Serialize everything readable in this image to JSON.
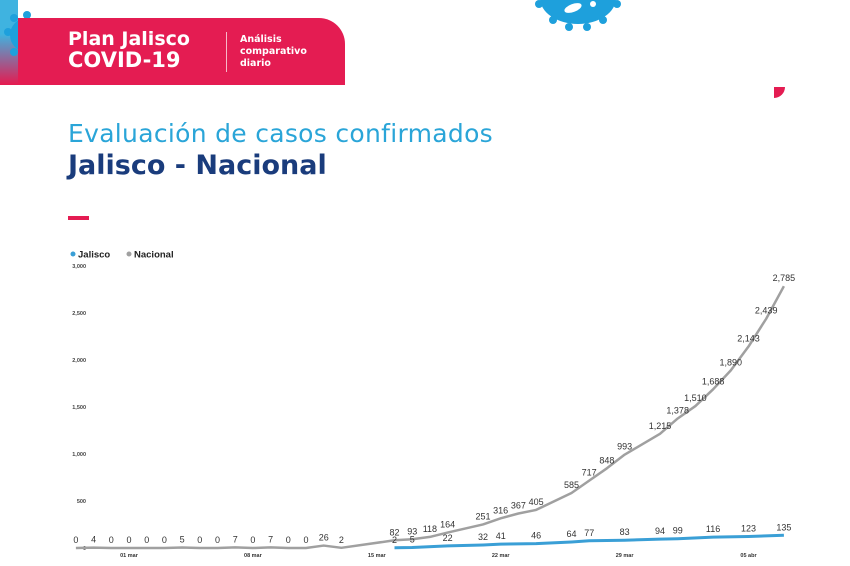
{
  "header": {
    "brand_line1": "Plan Jalisco",
    "brand_line2": "COVID-19",
    "sub_line1": "Análisis",
    "sub_line2": "comparativo",
    "sub_line3": "diario",
    "icon": "virus-icon"
  },
  "title": {
    "line1": "Evaluación de casos confirmados",
    "line2": "Jalisco - Nacional"
  },
  "colors": {
    "brand_pink": "#e41c52",
    "brand_blue": "#2aa5d8",
    "navy": "#1a3c7c",
    "jalisco": "#3a9fd6",
    "nacional": "#a0a0a0"
  },
  "chart_data": {
    "type": "line",
    "legend": [
      "Jalisco",
      "Nacional"
    ],
    "legend_placement": "top-left",
    "grid": false,
    "ylim": [
      0,
      3000
    ],
    "yticks": [
      {
        "v": 0,
        "label": "0"
      },
      {
        "v": 500,
        "label": "500"
      },
      {
        "v": 1000,
        "label": "1,000"
      },
      {
        "v": 1500,
        "label": "1,500"
      },
      {
        "v": 2000,
        "label": "2,000"
      },
      {
        "v": 2500,
        "label": "2,500"
      },
      {
        "v": 3000,
        "label": "3,000"
      }
    ],
    "xticks": [
      "01 mar",
      "08 mar",
      "15 mar",
      "22 mar",
      "29 mar",
      "05 abr"
    ],
    "series": [
      {
        "name": "Jalisco",
        "color": "#3a9fd6",
        "points": [
          [
            "16 mar",
            2
          ],
          [
            "17 mar",
            5
          ],
          [
            "19 mar",
            22
          ],
          [
            "21 mar",
            32
          ],
          [
            "22 mar",
            41
          ],
          [
            "24 mar",
            46
          ],
          [
            "26 mar",
            64
          ],
          [
            "27 mar",
            77
          ],
          [
            "29 mar",
            83
          ],
          [
            "31 mar",
            94
          ],
          [
            "01 abr",
            99
          ],
          [
            "03 abr",
            116
          ],
          [
            "05 abr",
            123
          ],
          [
            "07 abr",
            135
          ]
        ]
      },
      {
        "name": "Nacional",
        "color": "#a0a0a0",
        "points": [
          [
            "27 feb",
            0
          ],
          [
            "28 feb",
            4
          ],
          [
            "29 feb",
            0
          ],
          [
            "01 mar",
            0
          ],
          [
            "02 mar",
            0
          ],
          [
            "03 mar",
            0
          ],
          [
            "04 mar",
            5
          ],
          [
            "05 mar",
            0
          ],
          [
            "06 mar",
            0
          ],
          [
            "07 mar",
            7
          ],
          [
            "08 mar",
            0
          ],
          [
            "09 mar",
            7
          ],
          [
            "10 mar",
            0
          ],
          [
            "11 mar",
            0
          ],
          [
            "12 mar",
            26
          ],
          [
            "13 mar",
            2
          ],
          [
            "16 mar",
            82
          ],
          [
            "17 mar",
            93
          ],
          [
            "18 mar",
            118
          ],
          [
            "19 mar",
            164
          ],
          [
            "21 mar",
            251
          ],
          [
            "22 mar",
            316
          ],
          [
            "23 mar",
            367
          ],
          [
            "24 mar",
            405
          ],
          [
            "26 mar",
            585
          ],
          [
            "27 mar",
            717
          ],
          [
            "28 mar",
            848
          ],
          [
            "29 mar",
            993
          ],
          [
            "31 mar",
            1215
          ],
          [
            "01 abr",
            1378
          ],
          [
            "02 abr",
            1510
          ],
          [
            "03 abr",
            1688
          ],
          [
            "04 abr",
            1890
          ],
          [
            "05 abr",
            2143
          ],
          [
            "06 abr",
            2439
          ],
          [
            "07 abr",
            2785
          ]
        ]
      }
    ]
  }
}
